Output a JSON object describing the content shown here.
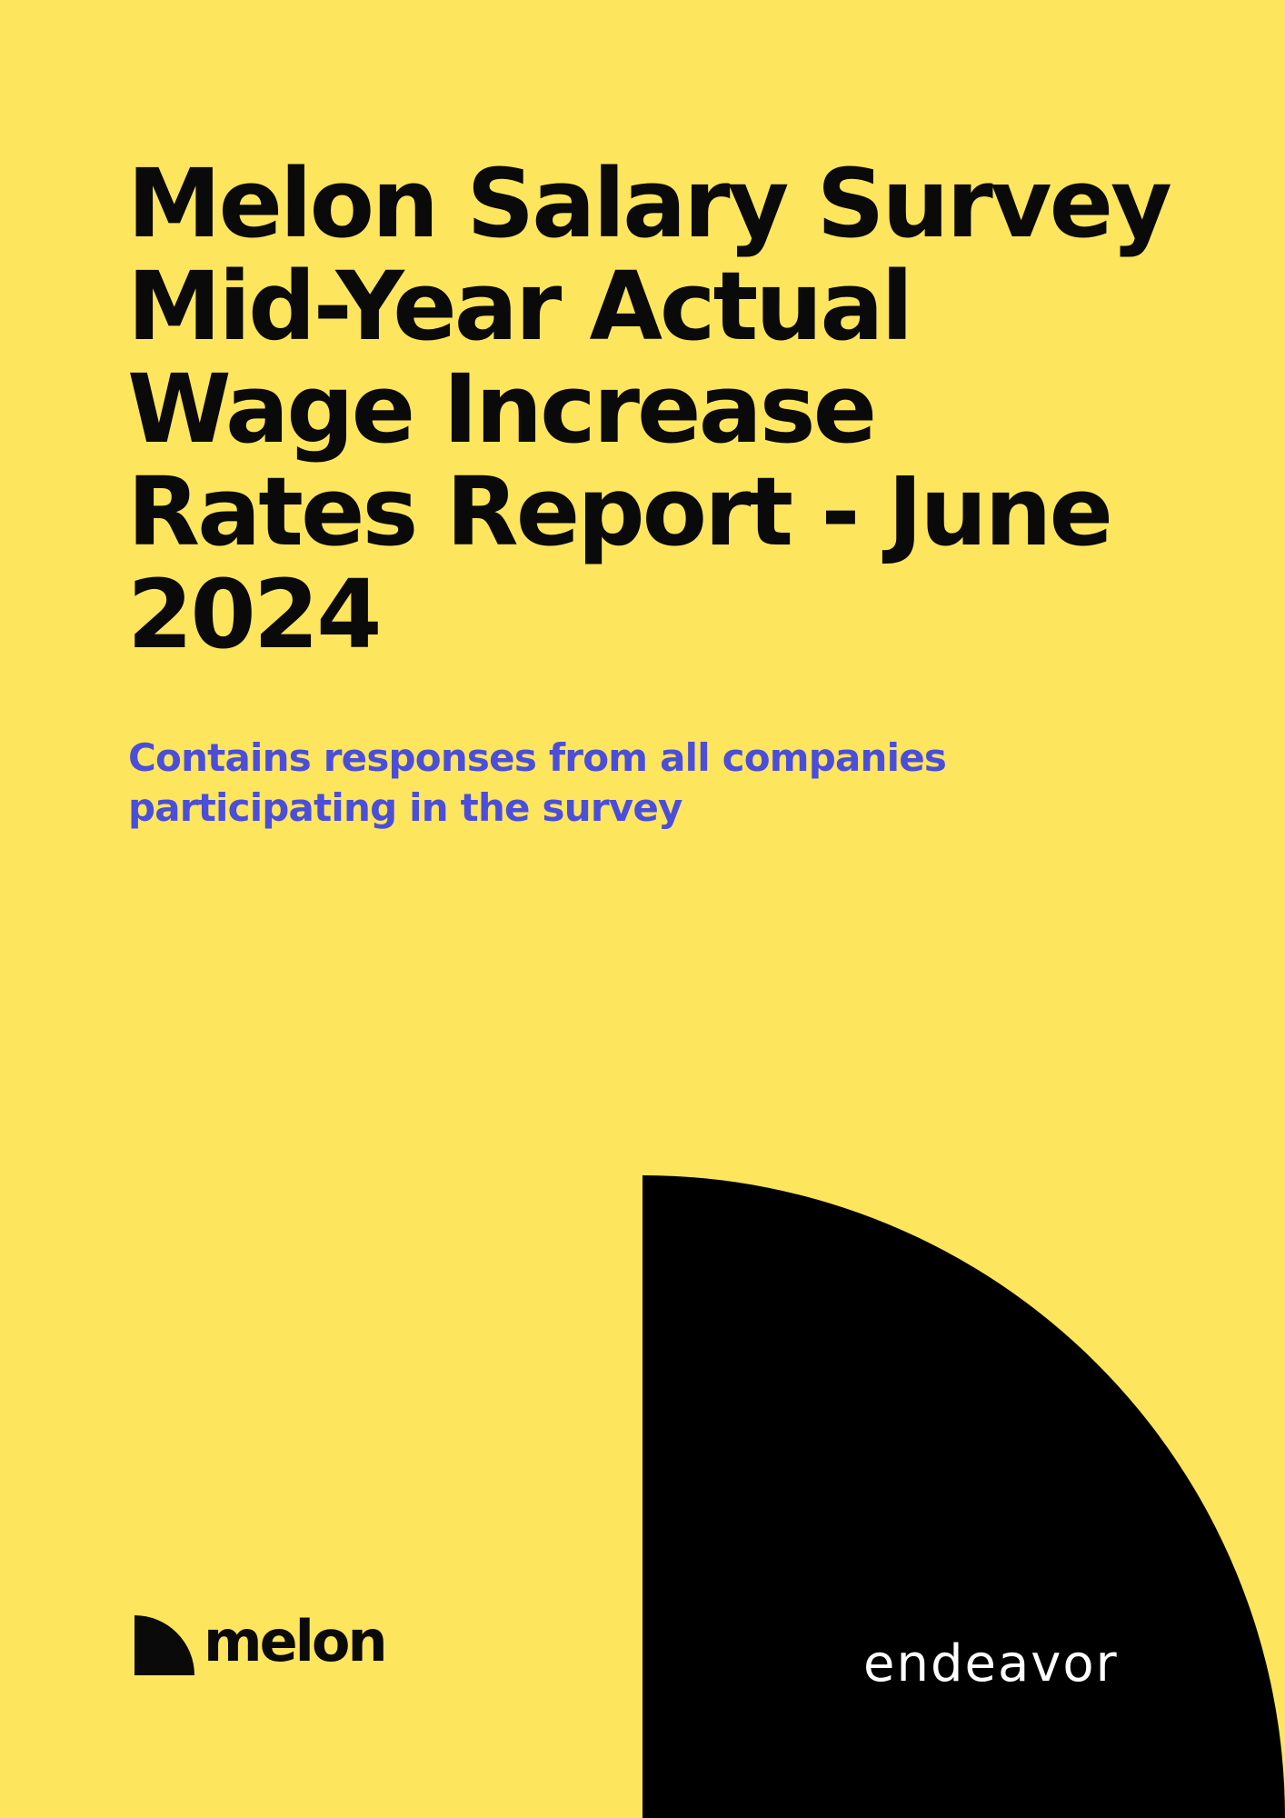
{
  "cover": {
    "title_lines": [
      "Melon Salary Survey",
      "Mid-Year Actual",
      "Wage Increase",
      "Rates Report - June",
      "2024"
    ],
    "subtitle_lines": [
      "Contains responses from all companies",
      "participating in the survey"
    ]
  },
  "logos": {
    "melon": {
      "wordmark": "melon",
      "icon": "melon-quarter-circle-icon"
    },
    "endeavor": {
      "wordmark": "endeavor"
    }
  },
  "colors": {
    "background": "#FEE55E",
    "title": "#0a0a0a",
    "subtitle": "#4A4ED9",
    "shape": "#000000",
    "endeavor_text": "#ffffff"
  }
}
